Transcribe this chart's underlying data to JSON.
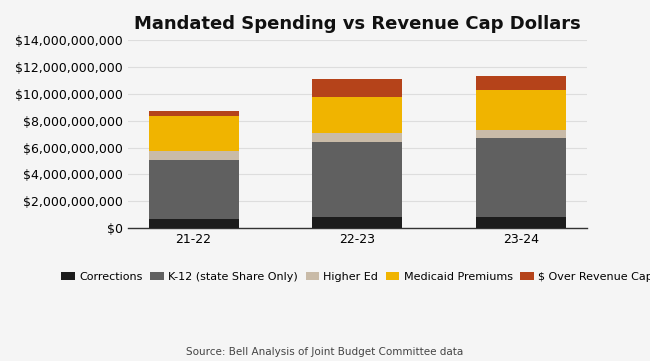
{
  "title": "Mandated Spending vs Revenue Cap Dollars",
  "categories": [
    "21-22",
    "22-23",
    "23-24"
  ],
  "series": [
    {
      "label": "Corrections",
      "color": "#1c1c1c",
      "values": [
        700000000,
        800000000,
        800000000
      ]
    },
    {
      "label": "K-12 (state Share Only)",
      "color": "#606060",
      "values": [
        4400000000,
        5600000000,
        5900000000
      ]
    },
    {
      "label": "Higher Ed",
      "color": "#c9bba8",
      "values": [
        650000000,
        700000000,
        600000000
      ]
    },
    {
      "label": "Medicaid Premiums",
      "color": "#f0b400",
      "values": [
        2600000000,
        2700000000,
        3000000000
      ]
    },
    {
      "label": "$ Over Revenue Cap",
      "color": "#b5431a",
      "values": [
        400000000,
        1300000000,
        1000000000
      ]
    }
  ],
  "ylim": [
    0,
    14000000000
  ],
  "yticks": [
    0,
    2000000000,
    4000000000,
    6000000000,
    8000000000,
    10000000000,
    12000000000,
    14000000000
  ],
  "source_text": "Source: Bell Analysis of Joint Budget Committee data",
  "background_color": "#f5f5f5",
  "plot_bg_color": "#f5f5f5",
  "grid_color": "#dddddd",
  "bar_width": 0.55,
  "title_fontsize": 13,
  "tick_fontsize": 9,
  "legend_fontsize": 8
}
